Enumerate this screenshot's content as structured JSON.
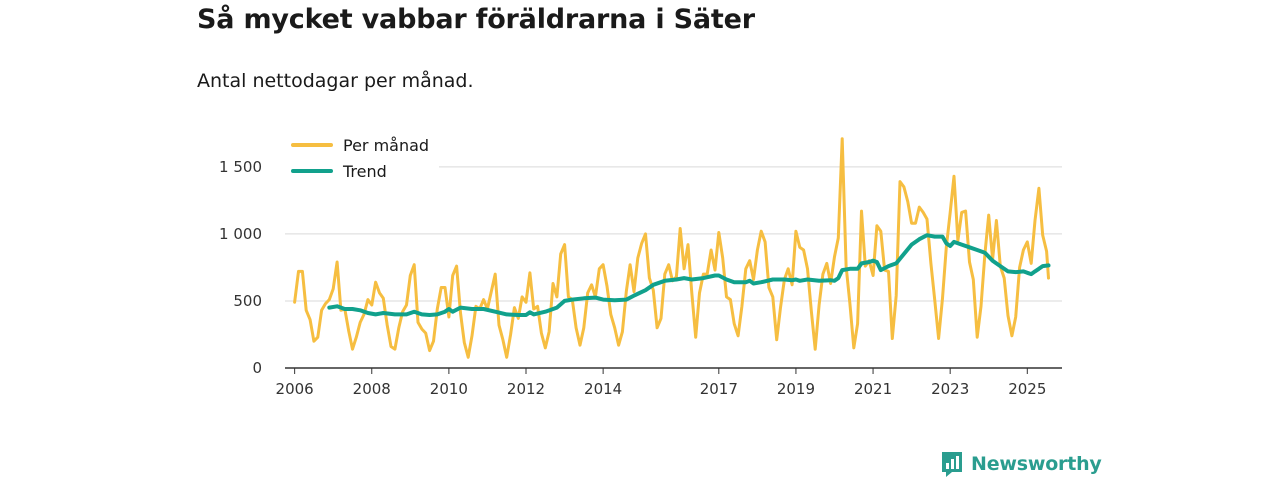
{
  "title": "Så mycket vabbar föräldrarna i Säter",
  "subtitle": "Antal nettodagar per månad.",
  "brand": {
    "name": "Newsworthy",
    "color": "#2a9d8f"
  },
  "chart_data": {
    "type": "line",
    "ylim": [
      0,
      1700
    ],
    "xlim": [
      2005.75,
      2025.9
    ],
    "grid": "horizontal",
    "legend_position": "top-left",
    "y_ticks": [
      {
        "value": 0,
        "label": "0"
      },
      {
        "value": 500,
        "label": "500"
      },
      {
        "value": 1000,
        "label": "1 000"
      },
      {
        "value": 1500,
        "label": "1 500"
      }
    ],
    "x_ticks": [
      {
        "value": 2006,
        "label": "2006"
      },
      {
        "value": 2008,
        "label": "2008"
      },
      {
        "value": 2010,
        "label": "2010"
      },
      {
        "value": 2012,
        "label": "2012"
      },
      {
        "value": 2014,
        "label": "2014"
      },
      {
        "value": 2017,
        "label": "2017"
      },
      {
        "value": 2019,
        "label": "2019"
      },
      {
        "value": 2021,
        "label": "2021"
      },
      {
        "value": 2023,
        "label": "2023"
      },
      {
        "value": 2025,
        "label": "2025"
      }
    ],
    "series": [
      {
        "name": "Per månad",
        "color": "#f6be41",
        "points": [
          [
            2006.0,
            490
          ],
          [
            2006.1,
            720
          ],
          [
            2006.2,
            720
          ],
          [
            2006.3,
            430
          ],
          [
            2006.4,
            360
          ],
          [
            2006.5,
            200
          ],
          [
            2006.6,
            230
          ],
          [
            2006.7,
            430
          ],
          [
            2006.8,
            480
          ],
          [
            2006.9,
            510
          ],
          [
            2007.0,
            590
          ],
          [
            2007.1,
            790
          ],
          [
            2007.2,
            430
          ],
          [
            2007.3,
            440
          ],
          [
            2007.4,
            280
          ],
          [
            2007.5,
            140
          ],
          [
            2007.6,
            230
          ],
          [
            2007.7,
            340
          ],
          [
            2007.8,
            400
          ],
          [
            2007.9,
            510
          ],
          [
            2008.0,
            470
          ],
          [
            2008.1,
            640
          ],
          [
            2008.2,
            560
          ],
          [
            2008.3,
            520
          ],
          [
            2008.4,
            320
          ],
          [
            2008.5,
            160
          ],
          [
            2008.6,
            140
          ],
          [
            2008.7,
            300
          ],
          [
            2008.8,
            420
          ],
          [
            2008.9,
            470
          ],
          [
            2009.0,
            690
          ],
          [
            2009.1,
            770
          ],
          [
            2009.2,
            340
          ],
          [
            2009.3,
            290
          ],
          [
            2009.4,
            260
          ],
          [
            2009.5,
            130
          ],
          [
            2009.6,
            200
          ],
          [
            2009.7,
            440
          ],
          [
            2009.8,
            600
          ],
          [
            2009.9,
            600
          ],
          [
            2010.0,
            380
          ],
          [
            2010.1,
            690
          ],
          [
            2010.2,
            760
          ],
          [
            2010.3,
            410
          ],
          [
            2010.4,
            190
          ],
          [
            2010.5,
            80
          ],
          [
            2010.6,
            240
          ],
          [
            2010.7,
            460
          ],
          [
            2010.8,
            440
          ],
          [
            2010.9,
            510
          ],
          [
            2011.0,
            440
          ],
          [
            2011.1,
            570
          ],
          [
            2011.2,
            700
          ],
          [
            2011.3,
            320
          ],
          [
            2011.4,
            210
          ],
          [
            2011.5,
            80
          ],
          [
            2011.6,
            250
          ],
          [
            2011.7,
            450
          ],
          [
            2011.8,
            370
          ],
          [
            2011.9,
            530
          ],
          [
            2012.0,
            490
          ],
          [
            2012.1,
            710
          ],
          [
            2012.2,
            440
          ],
          [
            2012.3,
            460
          ],
          [
            2012.4,
            260
          ],
          [
            2012.5,
            150
          ],
          [
            2012.6,
            270
          ],
          [
            2012.7,
            630
          ],
          [
            2012.8,
            530
          ],
          [
            2012.9,
            850
          ],
          [
            2013.0,
            920
          ],
          [
            2013.1,
            530
          ],
          [
            2013.2,
            510
          ],
          [
            2013.3,
            300
          ],
          [
            2013.4,
            170
          ],
          [
            2013.5,
            300
          ],
          [
            2013.6,
            560
          ],
          [
            2013.7,
            620
          ],
          [
            2013.8,
            530
          ],
          [
            2013.9,
            740
          ],
          [
            2014.0,
            770
          ],
          [
            2014.1,
            610
          ],
          [
            2014.2,
            400
          ],
          [
            2014.3,
            300
          ],
          [
            2014.4,
            170
          ],
          [
            2014.5,
            270
          ],
          [
            2014.6,
            570
          ],
          [
            2014.7,
            770
          ],
          [
            2014.8,
            570
          ],
          [
            2014.9,
            820
          ],
          [
            2015.0,
            930
          ],
          [
            2015.1,
            1000
          ],
          [
            2015.2,
            670
          ],
          [
            2015.3,
            580
          ],
          [
            2015.4,
            300
          ],
          [
            2015.5,
            370
          ],
          [
            2015.6,
            700
          ],
          [
            2015.7,
            770
          ],
          [
            2015.8,
            650
          ],
          [
            2015.9,
            680
          ],
          [
            2016.0,
            1040
          ],
          [
            2016.1,
            740
          ],
          [
            2016.2,
            920
          ],
          [
            2016.3,
            560
          ],
          [
            2016.4,
            230
          ],
          [
            2016.5,
            560
          ],
          [
            2016.6,
            700
          ],
          [
            2016.7,
            700
          ],
          [
            2016.8,
            880
          ],
          [
            2016.9,
            730
          ],
          [
            2017.0,
            1010
          ],
          [
            2017.1,
            820
          ],
          [
            2017.2,
            530
          ],
          [
            2017.3,
            510
          ],
          [
            2017.4,
            330
          ],
          [
            2017.5,
            240
          ],
          [
            2017.6,
            460
          ],
          [
            2017.7,
            740
          ],
          [
            2017.8,
            800
          ],
          [
            2017.9,
            660
          ],
          [
            2018.0,
            880
          ],
          [
            2018.1,
            1020
          ],
          [
            2018.2,
            940
          ],
          [
            2018.3,
            600
          ],
          [
            2018.4,
            530
          ],
          [
            2018.5,
            210
          ],
          [
            2018.6,
            450
          ],
          [
            2018.7,
            660
          ],
          [
            2018.8,
            740
          ],
          [
            2018.9,
            620
          ],
          [
            2019.0,
            1020
          ],
          [
            2019.1,
            900
          ],
          [
            2019.2,
            880
          ],
          [
            2019.3,
            740
          ],
          [
            2019.4,
            420
          ],
          [
            2019.5,
            140
          ],
          [
            2019.6,
            470
          ],
          [
            2019.7,
            700
          ],
          [
            2019.8,
            780
          ],
          [
            2019.9,
            630
          ],
          [
            2020.0,
            830
          ],
          [
            2020.1,
            970
          ],
          [
            2020.2,
            1710
          ],
          [
            2020.3,
            760
          ],
          [
            2020.4,
            480
          ],
          [
            2020.5,
            150
          ],
          [
            2020.6,
            330
          ],
          [
            2020.7,
            1170
          ],
          [
            2020.8,
            760
          ],
          [
            2020.9,
            800
          ],
          [
            2021.0,
            690
          ],
          [
            2021.1,
            1060
          ],
          [
            2021.2,
            1020
          ],
          [
            2021.3,
            730
          ],
          [
            2021.4,
            720
          ],
          [
            2021.5,
            220
          ],
          [
            2021.6,
            540
          ],
          [
            2021.7,
            1390
          ],
          [
            2021.8,
            1350
          ],
          [
            2021.9,
            1240
          ],
          [
            2022.0,
            1080
          ],
          [
            2022.1,
            1080
          ],
          [
            2022.2,
            1200
          ],
          [
            2022.3,
            1160
          ],
          [
            2022.4,
            1110
          ],
          [
            2022.5,
            780
          ],
          [
            2022.6,
            510
          ],
          [
            2022.7,
            220
          ],
          [
            2022.8,
            520
          ],
          [
            2022.9,
            900
          ],
          [
            2023.0,
            1160
          ],
          [
            2023.1,
            1430
          ],
          [
            2023.2,
            950
          ],
          [
            2023.3,
            1160
          ],
          [
            2023.4,
            1170
          ],
          [
            2023.5,
            790
          ],
          [
            2023.6,
            660
          ],
          [
            2023.7,
            230
          ],
          [
            2023.8,
            460
          ],
          [
            2023.9,
            850
          ],
          [
            2024.0,
            1140
          ],
          [
            2024.1,
            810
          ],
          [
            2024.2,
            1100
          ],
          [
            2024.3,
            760
          ],
          [
            2024.4,
            670
          ],
          [
            2024.5,
            390
          ],
          [
            2024.6,
            240
          ],
          [
            2024.7,
            380
          ],
          [
            2024.8,
            750
          ],
          [
            2024.9,
            880
          ],
          [
            2025.0,
            940
          ],
          [
            2025.1,
            780
          ],
          [
            2025.2,
            1100
          ],
          [
            2025.3,
            1340
          ],
          [
            2025.4,
            990
          ],
          [
            2025.5,
            870
          ],
          [
            2025.55,
            670
          ]
        ]
      },
      {
        "name": "Trend",
        "color": "#11a18c",
        "points": [
          [
            2006.9,
            450
          ],
          [
            2007.1,
            460
          ],
          [
            2007.3,
            440
          ],
          [
            2007.5,
            440
          ],
          [
            2007.7,
            430
          ],
          [
            2007.9,
            410
          ],
          [
            2008.1,
            400
          ],
          [
            2008.3,
            410
          ],
          [
            2008.6,
            400
          ],
          [
            2008.9,
            400
          ],
          [
            2009.1,
            420
          ],
          [
            2009.3,
            400
          ],
          [
            2009.5,
            395
          ],
          [
            2009.7,
            400
          ],
          [
            2009.9,
            420
          ],
          [
            2010.0,
            440
          ],
          [
            2010.1,
            420
          ],
          [
            2010.3,
            450
          ],
          [
            2010.6,
            440
          ],
          [
            2010.9,
            440
          ],
          [
            2011.2,
            420
          ],
          [
            2011.5,
            400
          ],
          [
            2011.8,
            395
          ],
          [
            2012.0,
            395
          ],
          [
            2012.1,
            415
          ],
          [
            2012.2,
            400
          ],
          [
            2012.5,
            420
          ],
          [
            2012.8,
            450
          ],
          [
            2013.0,
            500
          ],
          [
            2013.2,
            510
          ],
          [
            2013.5,
            520
          ],
          [
            2013.8,
            525
          ],
          [
            2014.0,
            510
          ],
          [
            2014.3,
            505
          ],
          [
            2014.6,
            510
          ],
          [
            2014.8,
            540
          ],
          [
            2015.1,
            580
          ],
          [
            2015.3,
            620
          ],
          [
            2015.6,
            650
          ],
          [
            2015.9,
            660
          ],
          [
            2016.1,
            670
          ],
          [
            2016.3,
            660
          ],
          [
            2016.6,
            670
          ],
          [
            2016.9,
            690
          ],
          [
            2017.0,
            690
          ],
          [
            2017.2,
            660
          ],
          [
            2017.4,
            640
          ],
          [
            2017.7,
            640
          ],
          [
            2017.8,
            650
          ],
          [
            2017.9,
            630
          ],
          [
            2018.1,
            640
          ],
          [
            2018.4,
            660
          ],
          [
            2018.7,
            660
          ],
          [
            2018.9,
            655
          ],
          [
            2019.0,
            660
          ],
          [
            2019.1,
            650
          ],
          [
            2019.3,
            660
          ],
          [
            2019.6,
            650
          ],
          [
            2019.9,
            655
          ],
          [
            2020.0,
            650
          ],
          [
            2020.1,
            670
          ],
          [
            2020.2,
            730
          ],
          [
            2020.4,
            740
          ],
          [
            2020.6,
            740
          ],
          [
            2020.7,
            780
          ],
          [
            2020.9,
            790
          ],
          [
            2021.0,
            800
          ],
          [
            2021.1,
            790
          ],
          [
            2021.2,
            730
          ],
          [
            2021.4,
            760
          ],
          [
            2021.6,
            780
          ],
          [
            2021.8,
            850
          ],
          [
            2022.0,
            920
          ],
          [
            2022.2,
            960
          ],
          [
            2022.4,
            990
          ],
          [
            2022.6,
            980
          ],
          [
            2022.8,
            980
          ],
          [
            2022.9,
            930
          ],
          [
            2023.0,
            910
          ],
          [
            2023.1,
            940
          ],
          [
            2023.3,
            920
          ],
          [
            2023.5,
            900
          ],
          [
            2023.7,
            880
          ],
          [
            2023.9,
            860
          ],
          [
            2024.1,
            800
          ],
          [
            2024.3,
            760
          ],
          [
            2024.5,
            720
          ],
          [
            2024.7,
            715
          ],
          [
            2024.9,
            720
          ],
          [
            2025.0,
            710
          ],
          [
            2025.1,
            700
          ],
          [
            2025.2,
            720
          ],
          [
            2025.3,
            740
          ],
          [
            2025.4,
            760
          ],
          [
            2025.55,
            765
          ]
        ]
      }
    ]
  }
}
